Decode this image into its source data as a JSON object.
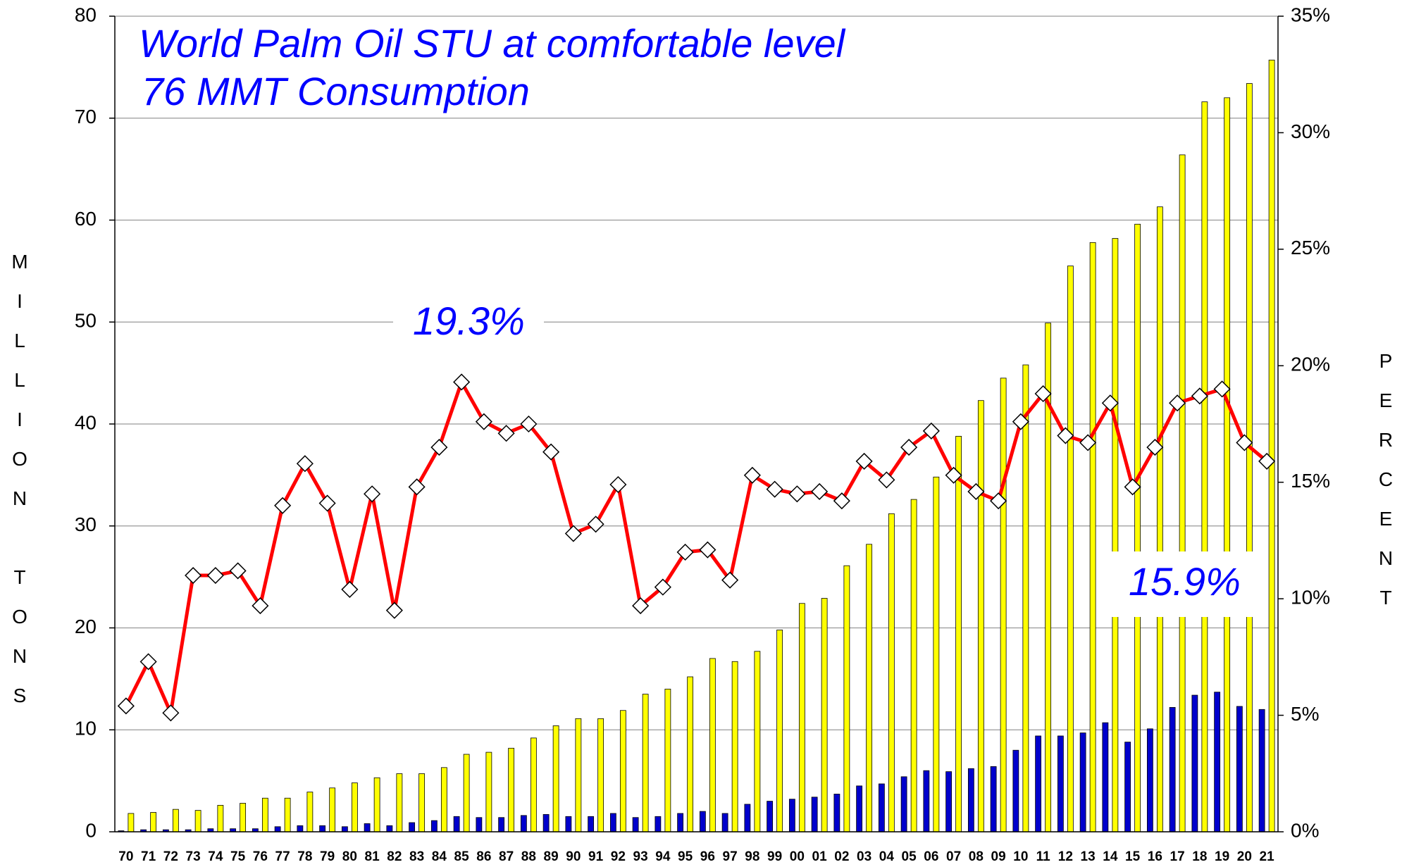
{
  "chart_data": {
    "type": "bar",
    "annotations": [
      "World Palm Oil STU at comfortable level",
      "76 MMT Consumption",
      "19.3%",
      "15.9%"
    ],
    "ylabel": "MILLION TONS",
    "y2label": "PERCENT",
    "categories": [
      "70",
      "71",
      "72",
      "73",
      "74",
      "75",
      "76",
      "77",
      "78",
      "79",
      "80",
      "81",
      "82",
      "83",
      "84",
      "85",
      "86",
      "87",
      "88",
      "89",
      "90",
      "91",
      "92",
      "93",
      "94",
      "95",
      "96",
      "97",
      "98",
      "99",
      "00",
      "01",
      "02",
      "03",
      "04",
      "05",
      "06",
      "07",
      "08",
      "09",
      "10",
      "11",
      "12",
      "13",
      "14",
      "15",
      "16",
      "17",
      "18",
      "19",
      "20",
      "21"
    ],
    "series": [
      {
        "type": "bar",
        "color": "#0000cc",
        "values": [
          0.1,
          0.2,
          0.2,
          0.2,
          0.3,
          0.3,
          0.3,
          0.5,
          0.6,
          0.6,
          0.5,
          0.8,
          0.6,
          0.9,
          1.1,
          1.5,
          1.4,
          1.4,
          1.6,
          1.7,
          1.5,
          1.5,
          1.8,
          1.4,
          1.5,
          1.8,
          2.0,
          1.8,
          2.7,
          3.0,
          3.2,
          3.4,
          3.7,
          4.5,
          4.7,
          5.4,
          6.0,
          5.9,
          6.2,
          6.4,
          8.0,
          9.4,
          9.4,
          9.7,
          10.7,
          8.8,
          10.1,
          12.2,
          13.4,
          13.7,
          12.3,
          12.0
        ]
      },
      {
        "type": "bar",
        "color": "#ffff00",
        "values": [
          1.8,
          1.9,
          2.2,
          2.1,
          2.6,
          2.8,
          3.3,
          3.3,
          3.9,
          4.3,
          4.8,
          5.3,
          5.7,
          5.7,
          6.3,
          7.6,
          7.8,
          8.2,
          9.2,
          10.4,
          11.1,
          11.1,
          11.9,
          13.5,
          14.0,
          15.2,
          17.0,
          16.7,
          17.7,
          19.8,
          22.4,
          22.9,
          26.1,
          28.2,
          31.2,
          32.6,
          34.8,
          38.8,
          42.3,
          44.5,
          45.8,
          49.9,
          55.5,
          57.8,
          58.2,
          59.6,
          61.3,
          66.4,
          71.6,
          72.0,
          73.4,
          75.7
        ]
      },
      {
        "type": "line",
        "axis": "y2",
        "color": "#ff0000",
        "values": [
          5.4,
          7.3,
          5.1,
          11.0,
          11.0,
          11.2,
          9.7,
          14.0,
          15.8,
          14.1,
          10.4,
          14.5,
          9.5,
          14.8,
          16.5,
          19.3,
          17.6,
          17.1,
          17.5,
          16.3,
          12.8,
          13.2,
          14.9,
          9.7,
          10.5,
          12.0,
          12.1,
          10.8,
          15.3,
          14.7,
          14.5,
          14.6,
          14.2,
          15.9,
          15.1,
          16.5,
          17.2,
          15.3,
          14.6,
          14.2,
          17.6,
          18.8,
          17.0,
          16.7,
          18.4,
          14.8,
          16.5,
          18.4,
          18.7,
          19.0,
          16.7,
          15.9
        ]
      }
    ],
    "ylim": [
      0,
      80
    ],
    "yticks": [
      0,
      10,
      20,
      30,
      40,
      50,
      60,
      70,
      80
    ],
    "y2lim": [
      0,
      35
    ],
    "y2ticks": [
      {
        "value": 0,
        "label": "0%"
      },
      {
        "value": 5,
        "label": "5%"
      },
      {
        "value": 10,
        "label": "10%"
      },
      {
        "value": 15,
        "label": "15%"
      },
      {
        "value": 20,
        "label": "20%"
      },
      {
        "value": 25,
        "label": "25%"
      },
      {
        "value": 30,
        "label": "30%"
      },
      {
        "value": 35,
        "label": "35%"
      }
    ],
    "grid": true
  }
}
